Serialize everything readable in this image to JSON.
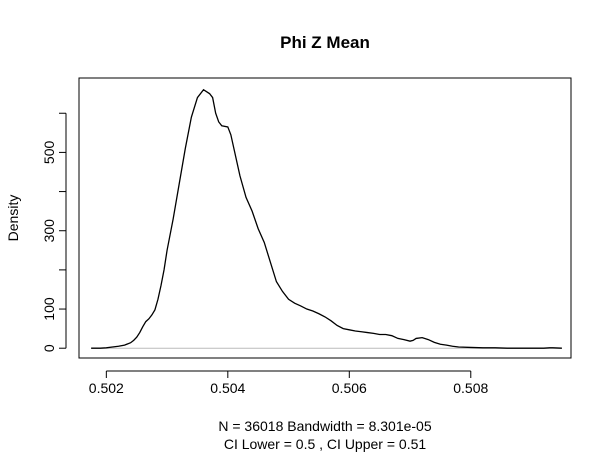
{
  "chart_data": {
    "type": "line",
    "title": "Phi Z Mean",
    "xlabel_line1": "N = 36018   Bandwidth = 8.301e-05",
    "xlabel_line2": "CI Lower =  0.5 , CI Upper =  0.51",
    "ylabel": "Density",
    "xlim": [
      0.50155,
      0.50965
    ],
    "ylim": [
      -25,
      690
    ],
    "x_ticks": [
      0.502,
      0.504,
      0.506,
      0.508
    ],
    "x_tick_labels": [
      "0.502",
      "0.504",
      "0.506",
      "0.508"
    ],
    "y_ticks": [
      0,
      100,
      300,
      500
    ],
    "y_tick_labels": [
      "0",
      "100",
      "300",
      "500"
    ],
    "series": [
      {
        "x": [
          0.50175,
          0.5019,
          0.502,
          0.5021,
          0.5022,
          0.5023,
          0.5024,
          0.50245,
          0.5025,
          0.50255,
          0.5026,
          0.50265,
          0.5027,
          0.50275,
          0.5028,
          0.50285,
          0.5029,
          0.50295,
          0.503,
          0.5031,
          0.5032,
          0.5033,
          0.5034,
          0.5035,
          0.5036,
          0.5037,
          0.50375,
          0.5038,
          0.50385,
          0.5039,
          0.504,
          0.50405,
          0.5041,
          0.5042,
          0.5043,
          0.5044,
          0.5045,
          0.5046,
          0.5047,
          0.5048,
          0.5049,
          0.505,
          0.5051,
          0.5052,
          0.5053,
          0.5054,
          0.5055,
          0.5056,
          0.5057,
          0.5058,
          0.5059,
          0.506,
          0.5061,
          0.5062,
          0.5063,
          0.5064,
          0.5065,
          0.5066,
          0.5067,
          0.5068,
          0.5069,
          0.507,
          0.50705,
          0.5071,
          0.5072,
          0.5073,
          0.5074,
          0.5075,
          0.5076,
          0.5077,
          0.5078,
          0.508,
          0.5082,
          0.5084,
          0.5086,
          0.5088,
          0.509,
          0.5092,
          0.5093,
          0.50935,
          0.5095
        ],
        "y": [
          0,
          0,
          1,
          3,
          5,
          8,
          14,
          20,
          28,
          40,
          55,
          68,
          75,
          85,
          98,
          125,
          160,
          200,
          250,
          330,
          420,
          510,
          590,
          640,
          660,
          650,
          640,
          600,
          578,
          568,
          565,
          545,
          510,
          440,
          385,
          350,
          305,
          270,
          220,
          170,
          145,
          125,
          115,
          108,
          100,
          95,
          88,
          80,
          70,
          58,
          50,
          47,
          44,
          42,
          40,
          38,
          35,
          35,
          32,
          25,
          22,
          18,
          20,
          25,
          27,
          22,
          15,
          10,
          8,
          5,
          3,
          2,
          1,
          1,
          0,
          0,
          0,
          0,
          1,
          1,
          0
        ]
      }
    ]
  }
}
